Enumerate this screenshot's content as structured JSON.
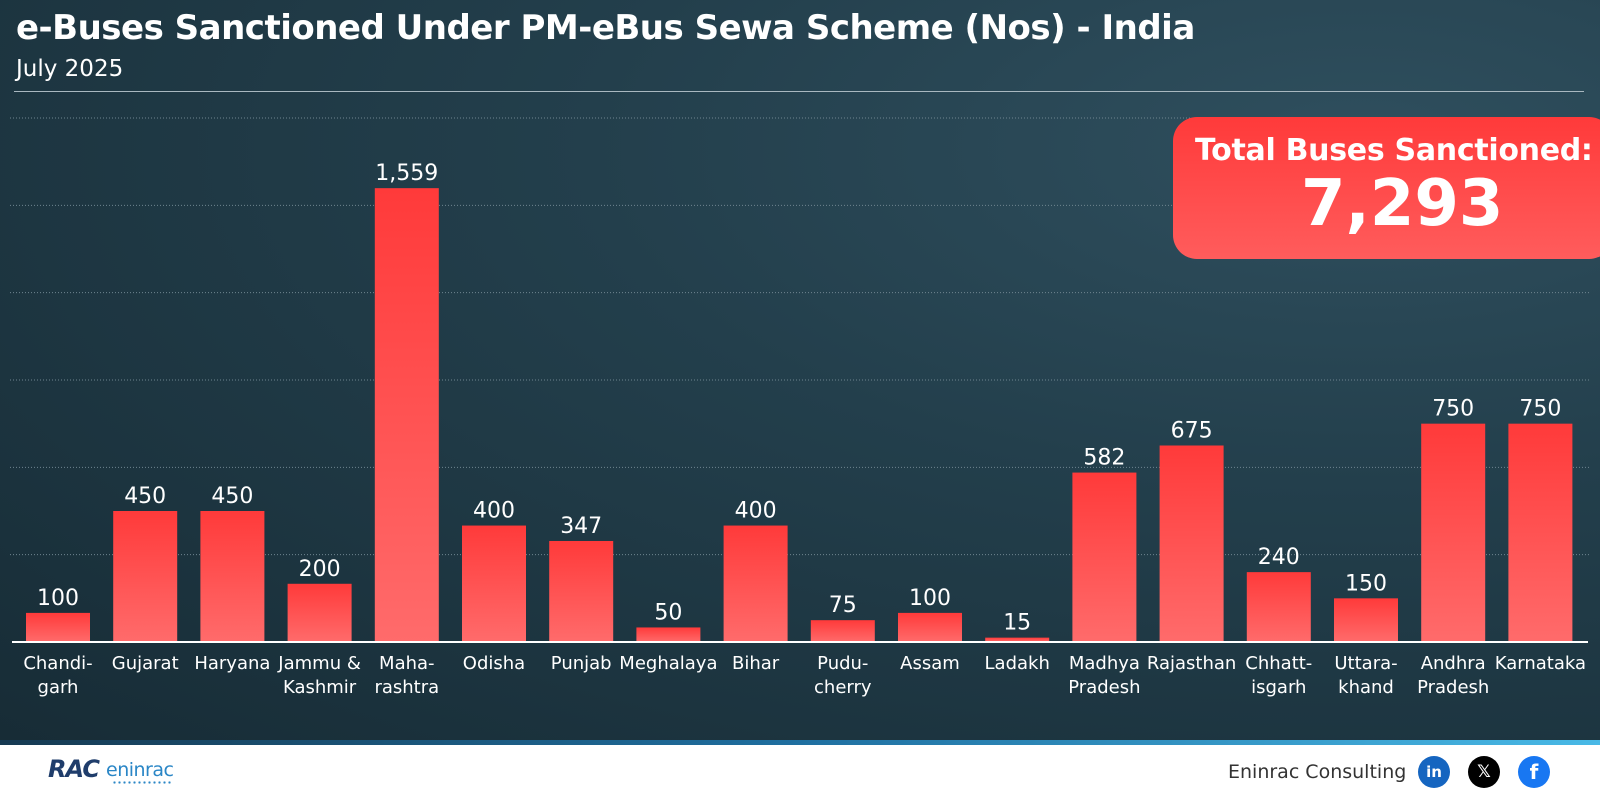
{
  "title": "e-Buses Sanctioned Under PM-eBus Sewa Scheme (Nos) - India",
  "subtitle": "July 2025",
  "total": {
    "label": "Total Buses Sanctioned:",
    "value": "7,293"
  },
  "chart_data": {
    "type": "bar",
    "title": "e-Buses Sanctioned Under PM-eBus Sewa Scheme (Nos) - India",
    "subtitle": "July 2025",
    "categories": [
      "Chandigarh",
      "Gujarat",
      "Haryana",
      "Jammu & Kashmir",
      "Maharashtra",
      "Odisha",
      "Punjab",
      "Meghalaya",
      "Bihar",
      "Puducherry",
      "Assam",
      "Ladakh",
      "Madhya Pradesh",
      "Rajasthan",
      "Chhattisgarh",
      "Uttarakhand",
      "Andhra Pradesh",
      "Karnataka"
    ],
    "category_label_lines": [
      [
        "Chandi-",
        "garh"
      ],
      [
        "Gujarat"
      ],
      [
        "Haryana"
      ],
      [
        "Jammu &",
        "Kashmir"
      ],
      [
        "Maha-",
        "rashtra"
      ],
      [
        "Odisha"
      ],
      [
        "Punjab"
      ],
      [
        "Meghalaya"
      ],
      [
        "Bihar"
      ],
      [
        "Pudu-",
        "cherry"
      ],
      [
        "Assam"
      ],
      [
        "Ladakh"
      ],
      [
        "Madhya",
        "Pradesh"
      ],
      [
        "Rajasthan"
      ],
      [
        "Chhatt-",
        "isgarh"
      ],
      [
        "Uttara-",
        "khand"
      ],
      [
        "Andhra",
        "Pradesh"
      ],
      [
        "Karnataka"
      ]
    ],
    "values": [
      100,
      450,
      450,
      200,
      1559,
      400,
      347,
      50,
      400,
      75,
      100,
      15,
      582,
      675,
      240,
      150,
      750,
      750
    ],
    "value_labels": [
      "100",
      "450",
      "450",
      "200",
      "1,559",
      "400",
      "347",
      "50",
      "400",
      "75",
      "100",
      "15",
      "582",
      "675",
      "240",
      "150",
      "750",
      "750"
    ],
    "xlabel": "",
    "ylabel": "",
    "ylim": [
      0,
      1800
    ],
    "grid": true,
    "bar_color": "#ff3a3a"
  },
  "footer": {
    "logo_mark": "RAC",
    "logo_text": "eninrac",
    "company": "Eninrac Consulting",
    "social": [
      "linkedin-icon",
      "x-icon",
      "facebook-icon"
    ],
    "linkedin_glyph": "in",
    "x_glyph": "𝕏",
    "facebook_glyph": "f"
  }
}
